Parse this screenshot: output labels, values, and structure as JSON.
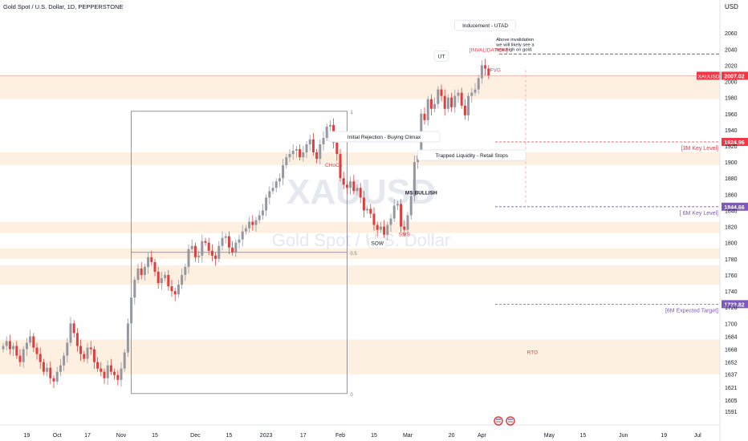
{
  "header": {
    "title": "Gold Spot / U.S. Dollar, 1D, PEPPERSTONE"
  },
  "watermark": {
    "symbol": "XAUUSD",
    "name": "Gold Spot / U.S. Dollar"
  },
  "colors": {
    "up": "#9598a1",
    "down": "#e03e3e",
    "zone": "#fdf0e0",
    "purple": "#7e57c2",
    "red": "#f23645",
    "dark": "#131722"
  },
  "chart_data": {
    "type": "candlestick",
    "title": "Gold Spot / U.S. Dollar, 1D, PEPPERSTONE",
    "currency": "USD",
    "ylim": [
      1582,
      2090
    ],
    "y_ticks": [
      2060,
      2040,
      2020,
      2000,
      1980,
      1960,
      1940,
      1920,
      1900,
      1880,
      1860,
      1840,
      1820,
      1800,
      1780,
      1760,
      1740,
      1720,
      1700,
      1684,
      1668,
      1652,
      1637,
      1621,
      1605,
      1591
    ],
    "x_ticks": [
      {
        "label": "19",
        "i": 7
      },
      {
        "label": "Oct",
        "i": 16
      },
      {
        "label": "17",
        "i": 25
      },
      {
        "label": "Nov",
        "i": 35
      },
      {
        "label": "15",
        "i": 45
      },
      {
        "label": "Dec",
        "i": 57
      },
      {
        "label": "15",
        "i": 67
      },
      {
        "label": "2023",
        "i": 78
      },
      {
        "label": "17",
        "i": 89
      },
      {
        "label": "Feb",
        "i": 100
      },
      {
        "label": "15",
        "i": 110
      },
      {
        "label": "Mar",
        "i": 120
      },
      {
        "label": "20",
        "i": 133
      },
      {
        "label": "Apr",
        "i": 142
      },
      {
        "label": "May",
        "i": 162
      },
      {
        "label": "15",
        "i": 172
      },
      {
        "label": "Jun",
        "i": 184
      },
      {
        "label": "19",
        "i": 196
      },
      {
        "label": "Jul",
        "i": 206
      }
    ],
    "closes": [
      1672,
      1678,
      1668,
      1672,
      1660,
      1652,
      1668,
      1676,
      1684,
      1670,
      1662,
      1652,
      1640,
      1645,
      1632,
      1628,
      1640,
      1648,
      1660,
      1676,
      1700,
      1688,
      1672,
      1662,
      1656,
      1670,
      1668,
      1652,
      1644,
      1640,
      1632,
      1648,
      1640,
      1636,
      1630,
      1644,
      1664,
      1700,
      1732,
      1754,
      1768,
      1760,
      1770,
      1782,
      1776,
      1764,
      1750,
      1756,
      1760,
      1746,
      1740,
      1736,
      1748,
      1760,
      1770,
      1792,
      1796,
      1782,
      1784,
      1802,
      1800,
      1790,
      1784,
      1780,
      1796,
      1806,
      1808,
      1794,
      1788,
      1800,
      1804,
      1814,
      1818,
      1826,
      1822,
      1828,
      1834,
      1840,
      1856,
      1864,
      1868,
      1876,
      1880,
      1896,
      1906,
      1910,
      1914,
      1916,
      1906,
      1912,
      1922,
      1928,
      1912,
      1904,
      1922,
      1930,
      1944,
      1946,
      1924,
      1910,
      1880,
      1872,
      1868,
      1876,
      1864,
      1868,
      1856,
      1840,
      1842,
      1836,
      1822,
      1816,
      1820,
      1810,
      1822,
      1830,
      1846,
      1848,
      1820,
      1816,
      1834,
      1858,
      1900,
      1908,
      1960,
      1952,
      1978,
      1966,
      1972,
      1990,
      1982,
      1966,
      1980,
      1968,
      1982,
      1986,
      1970,
      1958,
      1982,
      1986,
      1990,
      2004,
      2020,
      2016,
      2007
    ],
    "annotations": [
      {
        "name": "inducement-utad",
        "text": "Inducement - UTAD",
        "i": 143,
        "y": 2068,
        "style": "box"
      },
      {
        "name": "above-invalidation-1",
        "text": "Above invalidation",
        "i": 151,
        "y": 2050,
        "style": "note"
      },
      {
        "name": "above-invalidation-2",
        "text": "we will likely see a",
        "i": 151,
        "y": 2044,
        "style": "note"
      },
      {
        "name": "above-invalidation-3",
        "text": "new high on gold.",
        "i": 151,
        "y": 2038,
        "style": "note"
      },
      {
        "name": "invalidation",
        "text": "[INVALIDATION]",
        "i": 144,
        "y": 2037,
        "style": "red"
      },
      {
        "name": "utad-2",
        "text": "UT",
        "i": 130,
        "y": 2030,
        "style": "box"
      },
      {
        "name": "initial-rejection",
        "text": "Initial Rejection - Buying Climax",
        "i": 113,
        "y": 1930,
        "style": "box"
      },
      {
        "name": "choch",
        "text": "CHoCh",
        "i": 98,
        "y": 1894,
        "style": "red"
      },
      {
        "name": "trapped-liquidity",
        "text": "Trapped Liquidity - Retail Stops",
        "i": 139,
        "y": 1907,
        "style": "box"
      },
      {
        "name": "ms-bullish",
        "text": "MS BULLISH",
        "i": 124,
        "y": 1860,
        "style": "dark"
      },
      {
        "name": "sow",
        "text": "SOW",
        "i": 111,
        "y": 1798,
        "style": "box"
      },
      {
        "name": "sms",
        "text": "SMS",
        "i": 119,
        "y": 1808,
        "style": "red"
      },
      {
        "name": "fvg",
        "text": "FVG",
        "i": 146,
        "y": 2012,
        "style": "red"
      },
      {
        "name": "rto",
        "text": "RTO",
        "i": 157,
        "y": 1662,
        "style": "red"
      },
      {
        "name": "fib-top",
        "text": "1",
        "i": 102,
        "y": 1963,
        "style": "grey"
      },
      {
        "name": "fib-mid",
        "text": "0.5",
        "i": 102,
        "y": 1788,
        "style": "grey"
      },
      {
        "name": "fib-bottom",
        "text": "0",
        "i": 102,
        "y": 1613,
        "style": "grey"
      }
    ],
    "levels": [
      {
        "name": "3m-key-level",
        "label": "[3M Key Level]",
        "price": 1924.96,
        "price_text": "1924.96",
        "color": "#f23645"
      },
      {
        "name": "6m-key-level",
        "label": "[ 6M Key Level]",
        "price": 1844.66,
        "price_text": "1844.66",
        "color": "#7e57c2"
      },
      {
        "name": "6m-expected-target",
        "label": "[6M Expected Target]",
        "price": 1723.82,
        "price_text": "1723.82",
        "color": "#7e57c2"
      }
    ],
    "last_price": {
      "symbol": "XAUUSD",
      "price": 2007.02,
      "price_text": "2007.02"
    },
    "zones": [
      {
        "name": "supply-zone-top",
        "from": 1978,
        "to": 2008
      },
      {
        "name": "key-zone-3m",
        "from": 1896,
        "to": 1912
      },
      {
        "name": "demand-zone-mid-1",
        "from": 1812,
        "to": 1826
      },
      {
        "name": "demand-zone-mid-2",
        "from": 1780,
        "to": 1793
      },
      {
        "name": "demand-zone-low",
        "from": 1748,
        "to": 1772
      },
      {
        "name": "rto-zone",
        "from": 1637,
        "to": 1680
      }
    ],
    "fib_box": {
      "i_start": 38,
      "i_end": 102,
      "top": 1963,
      "bottom": 1613
    }
  }
}
